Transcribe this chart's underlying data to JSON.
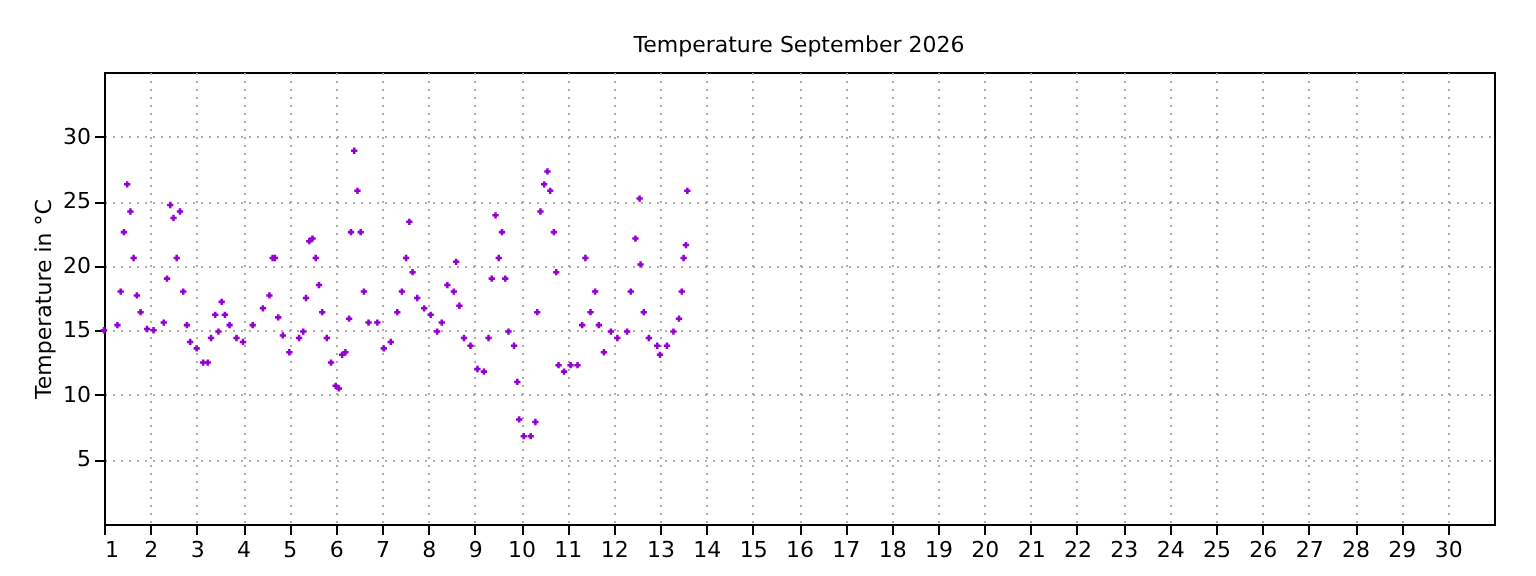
{
  "chart_data": {
    "type": "scatter",
    "title": "Temperature September 2026",
    "ylabel": "Temperature in °C",
    "xlim": [
      1,
      31
    ],
    "xticks": [
      1,
      2,
      3,
      4,
      5,
      6,
      7,
      8,
      9,
      10,
      11,
      12,
      13,
      14,
      15,
      16,
      17,
      18,
      19,
      20,
      21,
      22,
      23,
      24,
      25,
      26,
      27,
      28,
      29,
      30
    ],
    "ylim": [
      0,
      35
    ],
    "yticks": [
      5,
      10,
      15,
      20,
      25,
      30
    ],
    "grid": true,
    "marker": "cross",
    "series": [
      {
        "color": "#9400d3",
        "x": [
          1.0,
          1.29,
          1.36,
          1.43,
          1.5,
          1.57,
          1.64,
          1.71,
          1.79,
          1.93,
          2.07,
          2.29,
          2.36,
          2.43,
          2.5,
          2.57,
          2.64,
          2.71,
          2.79,
          2.86,
          3.0,
          3.14,
          3.24,
          3.31,
          3.4,
          3.47,
          3.54,
          3.61,
          3.71,
          3.86,
          4.0,
          4.21,
          4.43,
          4.57,
          4.64,
          4.69,
          4.76,
          4.86,
          5.0,
          5.21,
          5.3,
          5.36,
          5.43,
          5.5,
          5.57,
          5.64,
          5.71,
          5.81,
          5.9,
          6.0,
          6.07,
          6.14,
          6.21,
          6.29,
          6.33,
          6.4,
          6.47,
          6.54,
          6.61,
          6.71,
          6.9,
          7.04,
          7.19,
          7.33,
          7.43,
          7.52,
          7.59,
          7.66,
          7.76,
          7.91,
          8.05,
          8.19,
          8.29,
          8.41,
          8.55,
          8.6,
          8.67,
          8.77,
          8.91,
          9.06,
          9.2,
          9.3,
          9.37,
          9.45,
          9.52,
          9.59,
          9.66,
          9.73,
          9.85,
          9.92,
          9.96,
          10.06,
          10.21,
          10.31,
          10.35,
          10.42,
          10.5,
          10.57,
          10.63,
          10.71,
          10.76,
          10.81,
          10.93,
          11.07,
          11.22,
          11.32,
          11.39,
          11.5,
          11.6,
          11.68,
          11.79,
          11.94,
          12.08,
          12.29,
          12.37,
          12.47,
          12.56,
          12.58,
          12.65,
          12.76,
          12.94,
          13.0,
          13.15,
          13.29,
          13.41,
          13.47,
          13.51,
          13.56,
          13.59
        ],
        "values": [
          15.0,
          15.4,
          18.0,
          22.6,
          26.3,
          24.2,
          20.6,
          17.7,
          16.4,
          15.1,
          15.0,
          15.6,
          19.0,
          24.7,
          23.7,
          20.6,
          24.2,
          18.0,
          15.4,
          14.1,
          13.6,
          12.5,
          12.5,
          14.4,
          16.2,
          14.9,
          17.2,
          16.2,
          15.4,
          14.4,
          14.1,
          15.4,
          16.7,
          17.7,
          20.6,
          20.6,
          16.0,
          14.6,
          13.3,
          14.4,
          14.9,
          17.5,
          21.9,
          22.1,
          20.6,
          18.5,
          16.4,
          14.4,
          12.5,
          10.7,
          10.5,
          13.1,
          13.3,
          15.9,
          22.6,
          28.9,
          25.8,
          22.6,
          18.0,
          15.6,
          15.6,
          13.6,
          14.1,
          16.4,
          18.0,
          20.6,
          23.4,
          19.5,
          17.5,
          16.7,
          16.2,
          14.9,
          15.6,
          18.5,
          18.0,
          20.3,
          16.9,
          14.4,
          13.8,
          12.0,
          11.8,
          14.4,
          19.0,
          23.9,
          20.6,
          22.6,
          19.0,
          14.9,
          13.8,
          11.0,
          8.1,
          6.8,
          6.8,
          7.9,
          16.4,
          24.2,
          26.3,
          27.3,
          25.8,
          22.6,
          19.5,
          12.3,
          11.8,
          12.3,
          12.3,
          15.4,
          20.6,
          16.4,
          18.0,
          15.4,
          13.3,
          14.9,
          14.4,
          14.9,
          18.0,
          22.1,
          25.2,
          20.1,
          16.4,
          14.4,
          13.8,
          13.1,
          13.8,
          14.9,
          15.9,
          18.0,
          20.6,
          21.6,
          25.8
        ]
      }
    ]
  }
}
